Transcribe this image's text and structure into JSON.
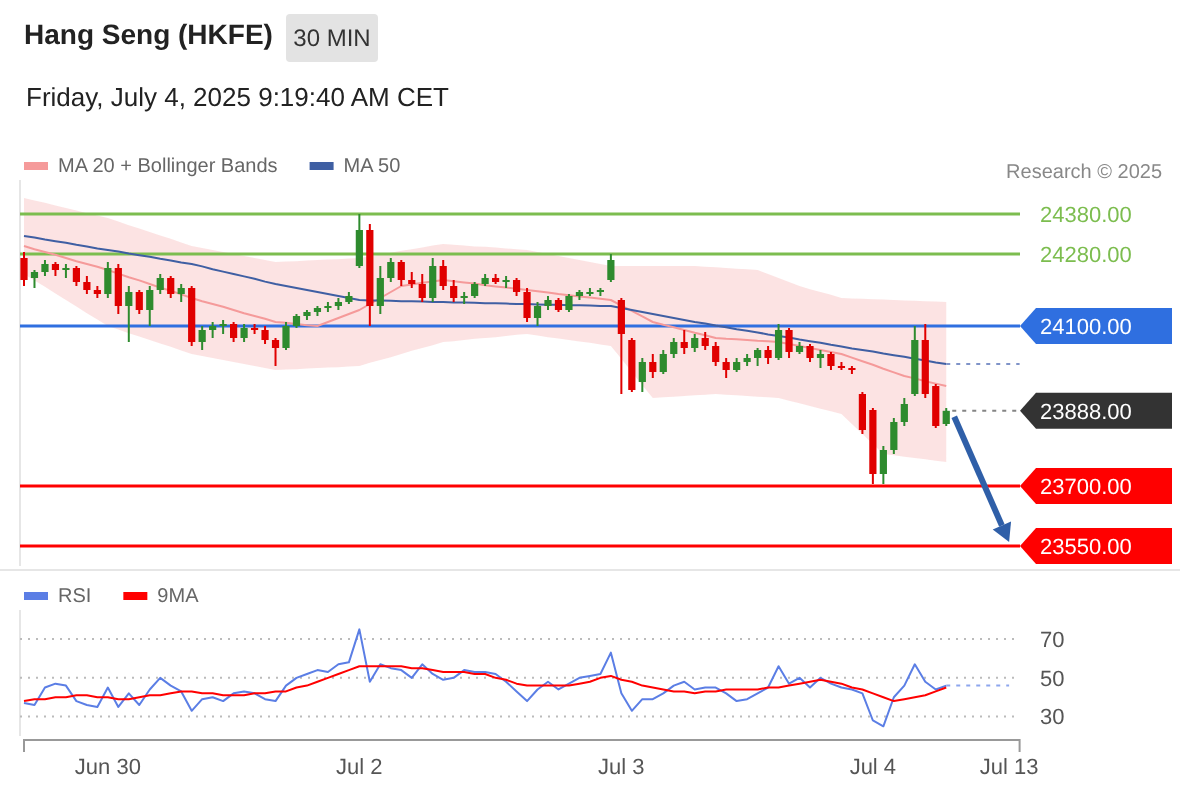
{
  "chart_data": [
    {
      "type": "candlestick",
      "title": "Hang Seng (HKFE)",
      "subtitle": "Friday, July 4, 2025 9:19:40 AM CET",
      "annotations": [
        "30 MIN",
        "Research © 2025"
      ],
      "categories": [
        null,
        null,
        null,
        null,
        null,
        null,
        null,
        null,
        null,
        null,
        null,
        null,
        null,
        null,
        null,
        null,
        null,
        null,
        null,
        null,
        null,
        null,
        null,
        null,
        null,
        null,
        null,
        null,
        null,
        null,
        null,
        null,
        null,
        null,
        null,
        null,
        null,
        null,
        null,
        null,
        null,
        null,
        null,
        null,
        null,
        null,
        null,
        null,
        null,
        null,
        null,
        null,
        null,
        null,
        null,
        null,
        null,
        null,
        null,
        null,
        null,
        null,
        null,
        null,
        null,
        null,
        null,
        null,
        null,
        null,
        null,
        null,
        null,
        null,
        null,
        null,
        null,
        null,
        null,
        null,
        null,
        null,
        null,
        null,
        null,
        null,
        null,
        null,
        null,
        null,
        null,
        null,
        null,
        null,
        null,
        null
      ],
      "ohlc": [
        [
          24270,
          24285,
          24200,
          24215
        ],
        [
          24220,
          24240,
          24195,
          24235
        ],
        [
          24235,
          24265,
          24225,
          24255
        ],
        [
          24255,
          24260,
          24225,
          24240
        ],
        [
          24240,
          24255,
          24220,
          24245
        ],
        [
          24245,
          24250,
          24200,
          24210
        ],
        [
          24210,
          24225,
          24180,
          24190
        ],
        [
          24190,
          24200,
          24170,
          24180
        ],
        [
          24180,
          24260,
          24170,
          24245
        ],
        [
          24245,
          24255,
          24130,
          24150
        ],
        [
          24150,
          24200,
          24060,
          24185
        ],
        [
          24185,
          24190,
          24130,
          24140
        ],
        [
          24140,
          24200,
          24100,
          24190
        ],
        [
          24190,
          24230,
          24180,
          24220
        ],
        [
          24220,
          24225,
          24170,
          24180
        ],
        [
          24180,
          24205,
          24160,
          24195
        ],
        [
          24195,
          24200,
          24050,
          24060
        ],
        [
          24060,
          24100,
          24040,
          24090
        ],
        [
          24090,
          24110,
          24070,
          24100
        ],
        [
          24100,
          24115,
          24080,
          24105
        ],
        [
          24105,
          24110,
          24060,
          24070
        ],
        [
          24070,
          24105,
          24060,
          24095
        ],
        [
          24095,
          24105,
          24080,
          24090
        ],
        [
          24090,
          24100,
          24055,
          24065
        ],
        [
          24065,
          24070,
          24000,
          24045
        ],
        [
          24045,
          24110,
          24040,
          24100
        ],
        [
          24100,
          24130,
          24095,
          24125
        ],
        [
          24125,
          24140,
          24115,
          24135
        ],
        [
          24135,
          24150,
          24125,
          24145
        ],
        [
          24145,
          24160,
          24135,
          24150
        ],
        [
          24150,
          24170,
          24140,
          24160
        ],
        [
          24160,
          24185,
          24155,
          24175
        ],
        [
          24250,
          24380,
          24245,
          24340
        ],
        [
          24340,
          24355,
          24100,
          24150
        ],
        [
          24150,
          24250,
          24130,
          24220
        ],
        [
          24220,
          24270,
          24210,
          24260
        ],
        [
          24260,
          24265,
          24200,
          24215
        ],
        [
          24215,
          24235,
          24195,
          24205
        ],
        [
          24205,
          24230,
          24160,
          24170
        ],
        [
          24170,
          24270,
          24160,
          24250
        ],
        [
          24250,
          24265,
          24190,
          24200
        ],
        [
          24200,
          24215,
          24160,
          24170
        ],
        [
          24170,
          24185,
          24155,
          24175
        ],
        [
          24175,
          24210,
          24170,
          24205
        ],
        [
          24205,
          24230,
          24200,
          24220
        ],
        [
          24220,
          24230,
          24205,
          24210
        ],
        [
          24210,
          24225,
          24195,
          24215
        ],
        [
          24215,
          24220,
          24175,
          24185
        ],
        [
          24185,
          24195,
          24110,
          24120
        ],
        [
          24120,
          24160,
          24100,
          24150
        ],
        [
          24150,
          24175,
          24140,
          24165
        ],
        [
          24165,
          24170,
          24135,
          24140
        ],
        [
          24140,
          24180,
          24135,
          24175
        ],
        [
          24175,
          24190,
          24165,
          24185
        ],
        [
          24185,
          24195,
          24175,
          24185
        ],
        [
          24185,
          24195,
          24175,
          24190
        ],
        [
          24215,
          24280,
          24210,
          24265
        ],
        [
          24165,
          24170,
          23930,
          24080
        ],
        [
          24065,
          24070,
          23935,
          23940
        ],
        [
          23960,
          24020,
          23935,
          24010
        ],
        [
          24010,
          24030,
          23970,
          23985
        ],
        [
          23985,
          24040,
          23980,
          24030
        ],
        [
          24030,
          24070,
          24020,
          24060
        ],
        [
          24060,
          24090,
          24030,
          24045
        ],
        [
          24045,
          24080,
          24035,
          24070
        ],
        [
          24070,
          24085,
          24040,
          24050
        ],
        [
          24050,
          24060,
          24000,
          24010
        ],
        [
          24010,
          24020,
          23970,
          23990
        ],
        [
          23990,
          24020,
          23985,
          24010
        ],
        [
          24010,
          24030,
          24000,
          24020
        ],
        [
          24020,
          24045,
          24000,
          24040
        ],
        [
          24040,
          24050,
          24005,
          24020
        ],
        [
          24020,
          24105,
          24015,
          24090
        ],
        [
          24090,
          24095,
          24020,
          24035
        ],
        [
          24035,
          24060,
          24030,
          24050
        ],
        [
          24050,
          24055,
          24010,
          24020
        ],
        [
          24020,
          24040,
          23995,
          24030
        ],
        [
          24030,
          24035,
          23990,
          24000
        ],
        [
          24000,
          24010,
          23990,
          23995
        ],
        [
          23995,
          24000,
          23980,
          23990
        ],
        [
          23930,
          23935,
          23830,
          23840
        ],
        [
          23890,
          23895,
          23705,
          23730
        ],
        [
          23730,
          23800,
          23705,
          23790
        ],
        [
          23790,
          23870,
          23780,
          23860
        ],
        [
          23860,
          23920,
          23850,
          23905
        ],
        [
          23930,
          24100,
          23925,
          24065
        ],
        [
          24065,
          24105,
          23920,
          23930
        ],
        [
          23950,
          23955,
          23845,
          23850
        ],
        [
          23855,
          23895,
          23850,
          23888
        ],
        null,
        null,
        null,
        null,
        null,
        null,
        null
      ],
      "series": [
        {
          "name": "MA 20 + Bollinger Bands",
          "type": "line",
          "color": "#f59a9a",
          "values": [
            24300,
            24292,
            24285,
            24278,
            24270,
            24262,
            24255,
            24248,
            24240,
            24231,
            24222,
            24214,
            24205,
            24196,
            24188,
            24179,
            24170,
            24162,
            24155,
            24148,
            24140,
            24132,
            24125,
            24118,
            24110,
            24108,
            24105,
            24102,
            24100,
            24110,
            24120,
            24130,
            24140,
            24155,
            24170,
            24185,
            24200,
            24204,
            24208,
            24211,
            24215,
            24212,
            24209,
            24206,
            24202,
            24199,
            24196,
            24193,
            24190,
            24187,
            24184,
            24180,
            24177,
            24174,
            24171,
            24168,
            24165,
            24151,
            24138,
            24124,
            24110,
            24103,
            24097,
            24090,
            24083,
            24077,
            24070,
            24068,
            24067,
            24065,
            24063,
            24062,
            24060,
            24055,
            24050,
            24045,
            24040,
            24035,
            24030,
            24021,
            24012,
            24003,
            23993,
            23984,
            23975,
            23969,
            23962,
            23956,
            23950,
            null,
            null,
            null,
            null,
            null,
            null,
            null
          ],
          "upper": [
            24420,
            24414,
            24408,
            24401,
            24395,
            24389,
            24382,
            24376,
            24370,
            24361,
            24352,
            24344,
            24335,
            24326,
            24318,
            24309,
            24300,
            24295,
            24290,
            24285,
            24280,
            24275,
            24270,
            24265,
            24260,
            24261,
            24262,
            24264,
            24265,
            24266,
            24267,
            24269,
            24270,
            24274,
            24279,
            24283,
            24288,
            24292,
            24296,
            24301,
            24305,
            24303,
            24301,
            24299,
            24298,
            24296,
            24294,
            24292,
            24290,
            24285,
            24280,
            24275,
            24270,
            24265,
            24260,
            24255,
            24250,
            24250,
            24250,
            24250,
            24250,
            24250,
            24250,
            24250,
            24250,
            24248,
            24247,
            24245,
            24243,
            24242,
            24240,
            24230,
            24220,
            24210,
            24200,
            24192,
            24185,
            24178,
            24170,
            24169,
            24168,
            24167,
            24166,
            24165,
            24164,
            24163,
            24162,
            24161,
            24160,
            null,
            null,
            null,
            null,
            null,
            null,
            null
          ],
          "lower": [
            24230,
            24214,
            24198,
            24181,
            24165,
            24149,
            24132,
            24116,
            24100,
            24091,
            24082,
            24074,
            24065,
            24056,
            24048,
            24039,
            24030,
            24025,
            24020,
            24015,
            24010,
            24005,
            24000,
            23995,
            23990,
            23991,
            23992,
            23994,
            23995,
            23996,
            23997,
            23999,
            24000,
            24008,
            24015,
            24022,
            24030,
            24038,
            24045,
            24052,
            24060,
            24062,
            24065,
            24068,
            24070,
            24072,
            24075,
            24078,
            24080,
            24076,
            24072,
            24069,
            24065,
            24061,
            24058,
            24054,
            24050,
            24018,
            23985,
            23952,
            23920,
            23922,
            23923,
            23925,
            23927,
            23928,
            23930,
            23928,
            23927,
            23925,
            23923,
            23922,
            23920,
            23913,
            23907,
            23900,
            23893,
            23887,
            23880,
            23855,
            23830,
            23805,
            23780,
            23777,
            23773,
            23770,
            23767,
            23763,
            23760,
            null,
            null,
            null,
            null,
            null,
            null,
            null
          ]
        },
        {
          "name": "MA 50",
          "type": "line",
          "color": "#3f5fa3",
          "values": [
            24325,
            24321,
            24316,
            24312,
            24308,
            24303,
            24299,
            24294,
            24290,
            24286,
            24281,
            24277,
            24273,
            24268,
            24264,
            24259,
            24255,
            24249,
            24242,
            24236,
            24230,
            24224,
            24218,
            24211,
            24205,
            24200,
            24195,
            24190,
            24185,
            24180,
            24175,
            24170,
            24165,
            24164,
            24164,
            24163,
            24162,
            24162,
            24161,
            24160,
            24160,
            24159,
            24159,
            24158,
            24157,
            24157,
            24156,
            24155,
            24155,
            24154,
            24153,
            24153,
            24152,
            24152,
            24151,
            24150,
            24150,
            24145,
            24140,
            24135,
            24130,
            24125,
            24120,
            24115,
            24110,
            24106,
            24101,
            24097,
            24092,
            24088,
            24084,
            24079,
            24075,
            24071,
            24066,
            24062,
            24058,
            24053,
            24049,
            24044,
            24040,
            24036,
            24031,
            24027,
            24023,
            24018,
            24014,
            24009,
            24005,
            null,
            null,
            null,
            null,
            null,
            null,
            null
          ]
        },
        {
          "type": "line",
          "color": "#7f93c8",
          "line_style": "dotted",
          "values": [
            null,
            null,
            null,
            null,
            null,
            null,
            null,
            null,
            null,
            null,
            null,
            null,
            null,
            null,
            null,
            null,
            null,
            null,
            null,
            null,
            null,
            null,
            null,
            null,
            null,
            null,
            null,
            null,
            null,
            null,
            null,
            null,
            null,
            null,
            null,
            null,
            null,
            null,
            null,
            null,
            null,
            null,
            null,
            null,
            null,
            null,
            null,
            null,
            null,
            null,
            null,
            null,
            null,
            null,
            null,
            null,
            null,
            null,
            null,
            null,
            null,
            null,
            null,
            null,
            null,
            null,
            null,
            null,
            null,
            null,
            null,
            null,
            null,
            null,
            null,
            null,
            null,
            null,
            null,
            null,
            null,
            null,
            null,
            null,
            null,
            null,
            null,
            null,
            24005,
            24005,
            24005,
            24005,
            24005,
            24005,
            24005,
            24005
          ]
        }
      ],
      "ylim": [
        23500,
        24465
      ],
      "ref_lines": [
        {
          "axis": "y",
          "value": 24380,
          "label": "24380.00",
          "color": "#7cbd4f"
        },
        {
          "axis": "y",
          "value": 24280,
          "label": "24280.00",
          "color": "#7cbd4f"
        },
        {
          "axis": "y",
          "value": 24100,
          "label": "24100.00",
          "color": "#2f6fe0"
        },
        {
          "axis": "y",
          "value": 23888,
          "label": "23888.00",
          "color": "#333333",
          "line_style": "dotted"
        },
        {
          "axis": "y",
          "value": 23700,
          "label": "23700.00",
          "color": "#ff0000"
        },
        {
          "axis": "y",
          "value": 23550,
          "label": "23550.00",
          "color": "#ff0000"
        }
      ],
      "legend": "top left",
      "tick_labels": false
    },
    {
      "type": "line",
      "categories": [
        null,
        null,
        null,
        null,
        null,
        null,
        null,
        null,
        "Jun 30",
        null,
        null,
        null,
        null,
        null,
        null,
        null,
        null,
        null,
        null,
        null,
        null,
        null,
        null,
        null,
        null,
        null,
        null,
        null,
        null,
        null,
        null,
        null,
        "Jul 2",
        null,
        null,
        null,
        null,
        null,
        null,
        null,
        null,
        null,
        null,
        null,
        null,
        null,
        null,
        null,
        null,
        null,
        null,
        null,
        null,
        null,
        null,
        null,
        null,
        "Jul 3",
        null,
        null,
        null,
        null,
        null,
        null,
        null,
        null,
        null,
        null,
        null,
        null,
        null,
        null,
        null,
        null,
        null,
        null,
        null,
        null,
        null,
        null,
        null,
        "Jul 4",
        null,
        null,
        null,
        null,
        null,
        null,
        null,
        null,
        null,
        null,
        null,
        null,
        "Jul 13",
        null
      ],
      "series": [
        {
          "name": "RSI",
          "color": "#5b7ee5",
          "values": [
            37,
            36,
            45,
            47,
            46,
            38,
            36,
            35,
            45,
            35,
            42,
            36,
            44,
            50,
            46,
            43,
            33,
            39,
            40,
            38,
            42,
            43,
            42,
            39,
            38,
            46,
            50,
            52,
            54,
            53,
            57,
            58,
            75,
            48,
            57,
            55,
            54,
            50,
            57,
            52,
            49,
            50,
            54,
            53,
            53,
            52,
            48,
            43,
            38,
            44,
            48,
            44,
            47,
            50,
            51,
            52,
            63,
            42,
            33,
            39,
            39,
            42,
            46,
            48,
            44,
            45,
            45,
            42,
            38,
            39,
            42,
            45,
            56,
            47,
            50,
            45,
            50,
            47,
            45,
            44,
            42,
            28,
            25,
            40,
            46,
            57,
            48,
            44,
            46,
            null,
            null,
            null,
            null,
            null,
            null,
            null
          ]
        },
        {
          "name": "9MA",
          "color": "#ff0000",
          "values": [
            38,
            39,
            39,
            40,
            40,
            41,
            41,
            40,
            40,
            39,
            39,
            40,
            41,
            41,
            42,
            43,
            43,
            42,
            42,
            41,
            41,
            41,
            42,
            42,
            43,
            43,
            45,
            46,
            48,
            50,
            52,
            54,
            56,
            56,
            56,
            56,
            56,
            55,
            55,
            54,
            53,
            53,
            53,
            52,
            52,
            50,
            49,
            47,
            46,
            46,
            46,
            46,
            46,
            47,
            48,
            50,
            51,
            49,
            48,
            46,
            45,
            44,
            43,
            43,
            42,
            43,
            43,
            44,
            44,
            44,
            44,
            45,
            45,
            46,
            47,
            48,
            49,
            48,
            47,
            45,
            44,
            42,
            40,
            38,
            39,
            40,
            41,
            43,
            45,
            null,
            null,
            null,
            null,
            null,
            null,
            null
          ]
        },
        {
          "color": "#8da6ee",
          "line_style": "dotted",
          "values": [
            null,
            null,
            null,
            null,
            null,
            null,
            null,
            null,
            null,
            null,
            null,
            null,
            null,
            null,
            null,
            null,
            null,
            null,
            null,
            null,
            null,
            null,
            null,
            null,
            null,
            null,
            null,
            null,
            null,
            null,
            null,
            null,
            null,
            null,
            null,
            null,
            null,
            null,
            null,
            null,
            null,
            null,
            null,
            null,
            null,
            null,
            null,
            null,
            null,
            null,
            null,
            null,
            null,
            null,
            null,
            null,
            null,
            null,
            null,
            null,
            null,
            null,
            null,
            null,
            null,
            null,
            null,
            null,
            null,
            null,
            null,
            null,
            null,
            null,
            null,
            null,
            null,
            null,
            null,
            null,
            null,
            null,
            null,
            null,
            null,
            null,
            null,
            null,
            46,
            46,
            46,
            46,
            46,
            46,
            46,
            null
          ]
        }
      ],
      "ylim": [
        20,
        85
      ],
      "yticks": [
        30,
        50,
        70
      ],
      "grid": "y",
      "legend": "top left"
    }
  ]
}
